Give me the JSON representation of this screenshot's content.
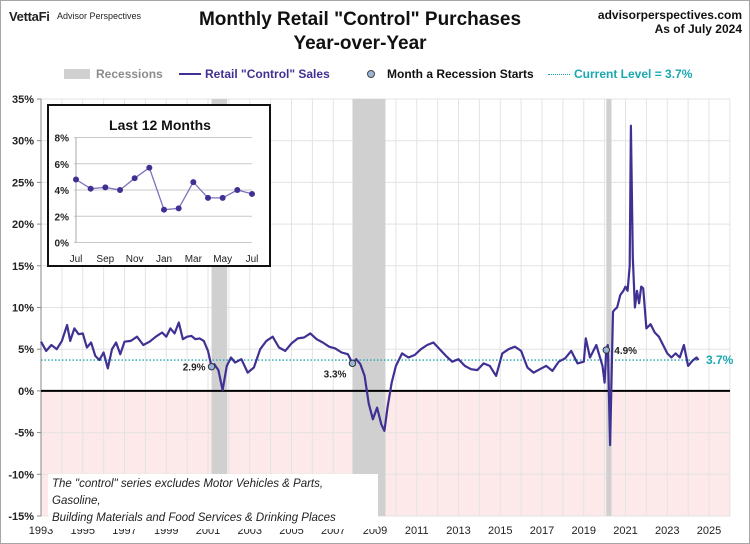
{
  "header": {
    "brand": "VettaFi",
    "brand_sub": "Advisor Perspectives",
    "title_line1": "Monthly Retail \"Control\" Purchases",
    "title_line2": "Year-over-Year",
    "site": "advisorperspectives.com",
    "as_of": "As of July 2024"
  },
  "legend": {
    "recessions": "Recessions",
    "series": "Retail \"Control\" Sales",
    "recession_start": "Month a Recession Starts",
    "current": "Current Level = 3.7%"
  },
  "colors": {
    "series": "#3f3193",
    "recession": "#d0d0d0",
    "current": "#1aa8b0",
    "negative_bg": "#fde9e9",
    "grid": "#e3e3e3",
    "marker": "#9ab6d6"
  },
  "note": {
    "line1": "The \"control\" series excludes Motor Vehicles & Parts, Gasoline,",
    "line2": "Building Materials and Food Services & Drinking Places"
  },
  "chart_data": [
    {
      "type": "line",
      "title": "Monthly Retail \"Control\" Purchases Year-over-Year",
      "xlabel": "",
      "ylabel": "",
      "xlim": [
        1993,
        2025
      ],
      "ylim": [
        -15,
        35
      ],
      "x_ticks": [
        "1993",
        "1995",
        "1997",
        "1999",
        "2001",
        "2003",
        "2005",
        "2007",
        "2009",
        "2011",
        "2013",
        "2015",
        "2017",
        "2019",
        "2021",
        "2023",
        "2025"
      ],
      "y_ticks": [
        "35%",
        "30%",
        "25%",
        "20%",
        "15%",
        "10%",
        "5%",
        "0%",
        "-5%",
        "-10%",
        "-15%"
      ],
      "grid": true,
      "legend_position": "top",
      "recessions": [
        [
          2001.17,
          2001.92
        ],
        [
          2007.92,
          2009.5
        ],
        [
          2020.08,
          2020.33
        ]
      ],
      "recession_start_markers": [
        {
          "x": 2001.17,
          "y": 2.9,
          "label": "2.9%"
        },
        {
          "x": 2007.92,
          "y": 3.3,
          "label": "3.3%"
        },
        {
          "x": 2020.08,
          "y": 4.9,
          "label": "4.9%"
        }
      ],
      "current_level": {
        "value": 3.7,
        "label": "3.7%"
      },
      "series": [
        {
          "name": "Retail \"Control\" Sales",
          "x": [
            1993.0,
            1993.25,
            1993.5,
            1993.75,
            1994.0,
            1994.25,
            1994.4,
            1994.6,
            1994.8,
            1995.0,
            1995.2,
            1995.4,
            1995.6,
            1995.8,
            1996.0,
            1996.2,
            1996.4,
            1996.6,
            1996.8,
            1997.0,
            1997.3,
            1997.6,
            1997.9,
            1998.2,
            1998.5,
            1998.8,
            1999.0,
            1999.2,
            1999.4,
            1999.6,
            1999.8,
            2000.0,
            2000.2,
            2000.4,
            2000.6,
            2000.8,
            2001.0,
            2001.17,
            2001.3,
            2001.5,
            2001.7,
            2001.9,
            2002.1,
            2002.3,
            2002.6,
            2002.9,
            2003.2,
            2003.5,
            2003.8,
            2004.1,
            2004.4,
            2004.7,
            2005.0,
            2005.3,
            2005.6,
            2005.9,
            2006.2,
            2006.5,
            2006.8,
            2007.1,
            2007.4,
            2007.7,
            2007.92,
            2008.1,
            2008.3,
            2008.5,
            2008.7,
            2008.9,
            2009.1,
            2009.3,
            2009.45,
            2009.6,
            2009.8,
            2010.0,
            2010.3,
            2010.6,
            2010.9,
            2011.2,
            2011.5,
            2011.8,
            2012.1,
            2012.4,
            2012.7,
            2013.0,
            2013.3,
            2013.6,
            2013.9,
            2014.2,
            2014.5,
            2014.8,
            2015.1,
            2015.4,
            2015.7,
            2016.0,
            2016.3,
            2016.6,
            2016.9,
            2017.2,
            2017.5,
            2017.8,
            2018.1,
            2018.4,
            2018.7,
            2019.0,
            2019.1,
            2019.3,
            2019.6,
            2019.9,
            2020.0,
            2020.08,
            2020.15,
            2020.26,
            2020.4,
            2020.5,
            2020.6,
            2020.75,
            2020.9,
            2021.0,
            2021.1,
            2021.2,
            2021.26,
            2021.35,
            2021.45,
            2021.55,
            2021.65,
            2021.75,
            2021.85,
            2022.0,
            2022.2,
            2022.4,
            2022.6,
            2022.8,
            2023.0,
            2023.2,
            2023.4,
            2023.6,
            2023.8,
            2024.0,
            2024.2,
            2024.4,
            2024.5
          ],
          "y": [
            5.9,
            4.8,
            5.5,
            5.0,
            6.0,
            7.9,
            6.0,
            7.5,
            6.8,
            6.9,
            5.2,
            5.8,
            4.2,
            3.7,
            4.6,
            2.7,
            5.0,
            5.8,
            4.4,
            5.9,
            6.0,
            6.5,
            5.5,
            5.9,
            6.5,
            7.0,
            6.5,
            7.5,
            6.9,
            8.2,
            6.2,
            6.5,
            6.6,
            6.2,
            6.3,
            6.0,
            4.8,
            2.9,
            3.2,
            2.5,
            0.1,
            3.0,
            4.0,
            3.4,
            3.8,
            2.2,
            2.8,
            5.0,
            6.0,
            6.5,
            5.2,
            4.8,
            5.7,
            6.3,
            6.4,
            6.9,
            6.2,
            5.8,
            5.3,
            5.1,
            4.6,
            4.4,
            3.3,
            3.8,
            3.2,
            1.8,
            -1.5,
            -3.4,
            -2.0,
            -4.0,
            -4.8,
            -2.0,
            1.0,
            3.0,
            4.5,
            4.0,
            4.3,
            5.0,
            5.5,
            5.8,
            5.0,
            4.2,
            3.5,
            3.8,
            3.0,
            2.6,
            2.5,
            3.3,
            3.0,
            1.8,
            4.5,
            5.0,
            5.3,
            4.8,
            2.8,
            2.2,
            2.6,
            3.0,
            2.4,
            3.5,
            3.9,
            4.8,
            3.3,
            3.5,
            6.3,
            4.0,
            5.5,
            3.0,
            1.0,
            4.9,
            5.5,
            -6.5,
            9.5,
            9.8,
            10.0,
            11.5,
            12.0,
            12.5,
            12.0,
            15.0,
            31.8,
            16.0,
            10.0,
            12.0,
            10.5,
            12.5,
            12.3,
            7.5,
            8.0,
            7.0,
            6.5,
            5.5,
            4.5,
            4.0,
            4.5,
            4.0,
            5.5,
            3.0,
            3.6,
            4.0,
            3.7
          ]
        }
      ]
    },
    {
      "type": "line",
      "title": "Last 12 Months",
      "xlabel": "",
      "ylabel": "",
      "ylim": [
        0,
        8
      ],
      "y_ticks": [
        "8%",
        "6%",
        "4%",
        "2%",
        "0%"
      ],
      "x_ticks": [
        "Jul",
        "Sep",
        "Nov",
        "Jan",
        "Mar",
        "May",
        "Jul"
      ],
      "grid": true,
      "categories": [
        "Jul",
        "Aug",
        "Sep",
        "Oct",
        "Nov",
        "Dec",
        "Jan",
        "Feb",
        "Mar",
        "Apr",
        "May",
        "Jun",
        "Jul"
      ],
      "values": [
        4.8,
        4.1,
        4.2,
        4.0,
        4.9,
        5.7,
        2.5,
        2.6,
        4.6,
        3.4,
        3.4,
        4.0,
        3.7
      ]
    }
  ]
}
